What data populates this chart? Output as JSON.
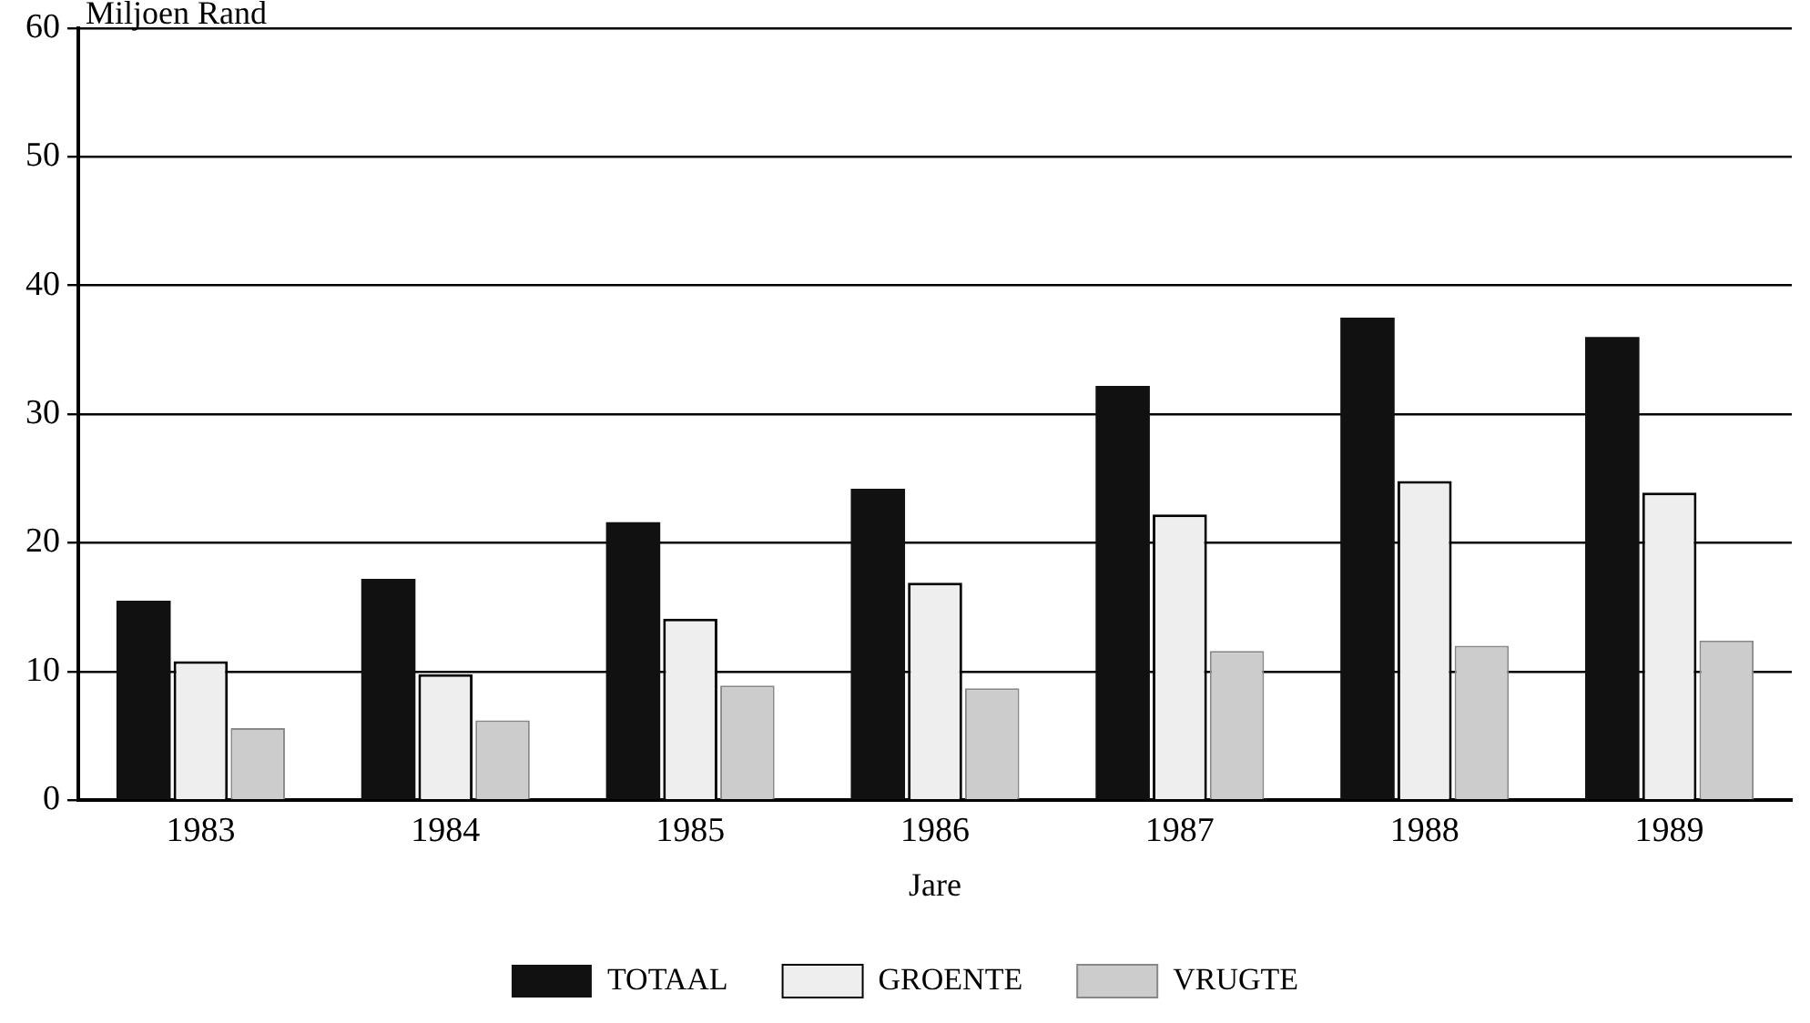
{
  "chart_data": {
    "type": "bar",
    "ylabel": "Miljoen Rand",
    "xlabel": "Jare",
    "categories": [
      "1983",
      "1984",
      "1985",
      "1986",
      "1987",
      "1988",
      "1989"
    ],
    "series": [
      {
        "name": "TOTAAL",
        "color": "#111111",
        "values": [
          15.5,
          17.2,
          21.6,
          24.2,
          32.2,
          37.5,
          36
        ]
      },
      {
        "name": "GROENTE",
        "color": "#eeeeee",
        "values": [
          10.8,
          9.8,
          14.1,
          16.9,
          22.2,
          24.8,
          23.9
        ]
      },
      {
        "name": "VRUGTE",
        "color": "#cccccc",
        "values": [
          5.6,
          6.2,
          8.9,
          8.7,
          11.6,
          12,
          12.4
        ]
      }
    ],
    "ylim": [
      0,
      60
    ],
    "yticks": [
      0,
      10,
      20,
      30,
      40,
      50,
      60
    ],
    "grid": "y",
    "legend": "bottom"
  }
}
